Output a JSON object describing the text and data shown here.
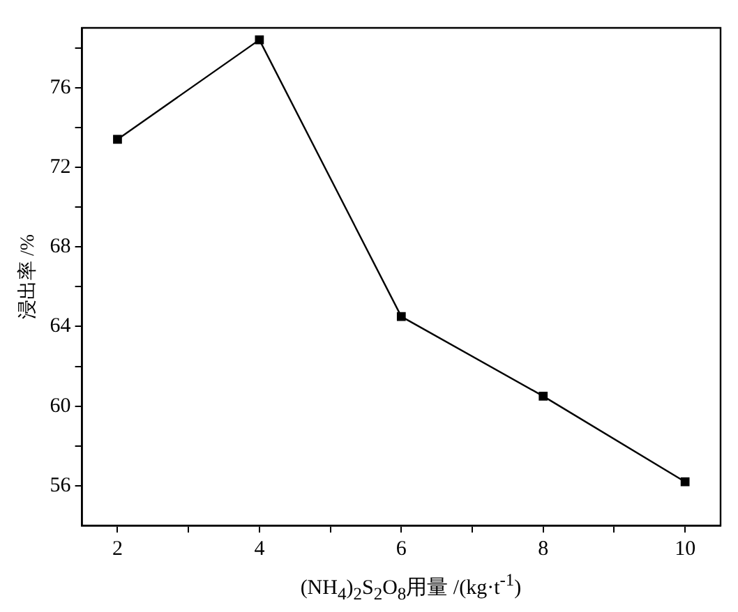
{
  "chart_data": {
    "type": "line",
    "xlabel": "(NH$_{4}$)$_{2}$S$_{2}$O$_{8}$用量 /(kg·t$^{-1}$)",
    "ylabel": "浸出率 /%",
    "x": [
      2,
      4,
      6,
      8,
      10
    ],
    "series": [
      {
        "color": "#000000",
        "values": [
          73.4,
          78.4,
          64.5,
          60.5,
          56.2
        ]
      }
    ],
    "xlim": [
      1.5,
      10.5
    ],
    "xticks": [
      2,
      {
        "value": 3,
        "label": null
      },
      4,
      {
        "value": 5,
        "label": null
      },
      6,
      {
        "value": 7,
        "label": null
      },
      8,
      {
        "value": 9,
        "label": null
      },
      10
    ],
    "ylim": [
      54,
      79
    ],
    "yticks": [
      56,
      {
        "value": 58,
        "label": null
      },
      60,
      {
        "value": 62,
        "label": null
      },
      64,
      {
        "value": 66,
        "label": null
      },
      68,
      {
        "value": 70,
        "label": null
      },
      72,
      {
        "value": 74,
        "label": null
      },
      76,
      {
        "value": 78,
        "label": null
      }
    ],
    "grid": false,
    "legend": false,
    "marker": "square",
    "line_style": "solid"
  }
}
